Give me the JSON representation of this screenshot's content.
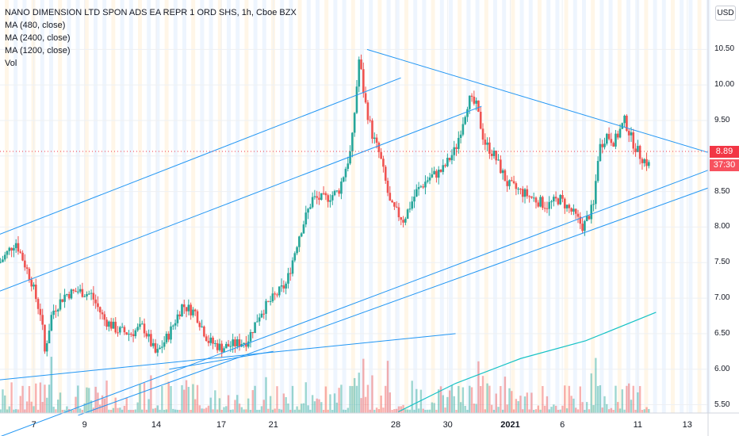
{
  "legend": {
    "symbol": "NANO DIMENSION LTD SPON ADS EA REPR 1 ORD SHS, 1h, Cboe BZX",
    "ma1": "MA (480, close)",
    "ma2": "MA (2400, close)",
    "ma3": "MA (1200, close)",
    "vol": "Vol"
  },
  "currency": "USD",
  "last_price": "8.89",
  "countdown": "37:30",
  "colors": {
    "up": "#26a69a",
    "down": "#ef5350",
    "trend": "#2196f3",
    "ma": "#17c2c5",
    "badge": "#f23645"
  },
  "chart_data": {
    "type": "candlestick",
    "y_ticks": [
      "10.50",
      "10.00",
      "9.50",
      "9.00",
      "8.50",
      "8.00",
      "7.50",
      "7.00",
      "6.50",
      "6.00",
      "5.50"
    ],
    "y_range": [
      5.45,
      10.95
    ],
    "x_ticks": [
      {
        "label": "7",
        "bold": false
      },
      {
        "label": "9",
        "bold": false
      },
      {
        "label": "14",
        "bold": false
      },
      {
        "label": "17",
        "bold": false
      },
      {
        "label": "21",
        "bold": false
      },
      {
        "label": "28",
        "bold": false
      },
      {
        "label": "30",
        "bold": false
      },
      {
        "label": "2021",
        "bold": true
      },
      {
        "label": "6",
        "bold": false
      },
      {
        "label": "11",
        "bold": false
      },
      {
        "label": "13",
        "bold": false
      }
    ],
    "x_tick_index": [
      1.3,
      3.25,
      6,
      8.5,
      10.5,
      15.2,
      17.2,
      19.6,
      21.6,
      24.5,
      26.4
    ],
    "x_range": [
      0,
      27.2
    ],
    "price_keys": [
      [
        0,
        7.5
      ],
      [
        0.6,
        7.8
      ],
      [
        1.2,
        7.25
      ],
      [
        1.45,
        6.9
      ],
      [
        1.6,
        6.75
      ],
      [
        1.7,
        6.2
      ],
      [
        2.0,
        6.8
      ],
      [
        2.5,
        7.05
      ],
      [
        3.0,
        7.1
      ],
      [
        3.5,
        7.05
      ],
      [
        4.0,
        6.7
      ],
      [
        4.5,
        6.55
      ],
      [
        5.0,
        6.5
      ],
      [
        5.5,
        6.6
      ],
      [
        6.0,
        6.2
      ],
      [
        6.5,
        6.5
      ],
      [
        7.0,
        6.9
      ],
      [
        7.5,
        6.8
      ],
      [
        8.0,
        6.4
      ],
      [
        8.5,
        6.3
      ],
      [
        9.0,
        6.35
      ],
      [
        9.5,
        6.4
      ],
      [
        10.0,
        6.8
      ],
      [
        10.5,
        7.0
      ],
      [
        11.0,
        7.2
      ],
      [
        11.5,
        7.9
      ],
      [
        12.0,
        8.4
      ],
      [
        12.5,
        8.4
      ],
      [
        13.0,
        8.5
      ],
      [
        13.5,
        9.1
      ],
      [
        13.8,
        10.4
      ],
      [
        14.0,
        9.8
      ],
      [
        14.3,
        9.3
      ],
      [
        14.6,
        9.0
      ],
      [
        15.0,
        8.3
      ],
      [
        15.5,
        8.1
      ],
      [
        16.0,
        8.5
      ],
      [
        16.5,
        8.7
      ],
      [
        17.0,
        8.8
      ],
      [
        17.5,
        9.1
      ],
      [
        18.0,
        9.8
      ],
      [
        18.3,
        9.7
      ],
      [
        18.6,
        9.2
      ],
      [
        19.0,
        9.0
      ],
      [
        19.5,
        8.6
      ],
      [
        20.0,
        8.5
      ],
      [
        20.5,
        8.4
      ],
      [
        21.0,
        8.3
      ],
      [
        21.5,
        8.4
      ],
      [
        22.0,
        8.2
      ],
      [
        22.4,
        8.0
      ],
      [
        22.8,
        8.3
      ],
      [
        23.0,
        9.1
      ],
      [
        23.3,
        9.3
      ],
      [
        23.6,
        9.2
      ],
      [
        24.0,
        9.5
      ],
      [
        24.3,
        9.2
      ],
      [
        24.6,
        9.0
      ],
      [
        25.0,
        8.85
      ]
    ],
    "series": [
      {
        "name": "MA (480, close)",
        "points": [
          [
            15.3,
            5.4
          ],
          [
            17.5,
            5.8
          ],
          [
            20,
            6.15
          ],
          [
            22.5,
            6.4
          ],
          [
            25.2,
            6.8
          ]
        ]
      }
    ],
    "trendlines": [
      [
        [
          14.1,
          10.5
        ],
        [
          27.2,
          9.05
        ]
      ],
      [
        [
          0,
          7.9
        ],
        [
          15.4,
          10.1
        ]
      ],
      [
        [
          0,
          7.1
        ],
        [
          18.5,
          9.7
        ]
      ],
      [
        [
          0,
          5.05
        ],
        [
          27.2,
          8.8
        ]
      ],
      [
        [
          3,
          5.35
        ],
        [
          27.2,
          8.55
        ]
      ],
      [
        [
          0,
          5.85
        ],
        [
          17.5,
          6.5
        ]
      ],
      [
        [
          6.5,
          6.0
        ],
        [
          10.5,
          6.25
        ]
      ]
    ],
    "volume": "relative"
  }
}
